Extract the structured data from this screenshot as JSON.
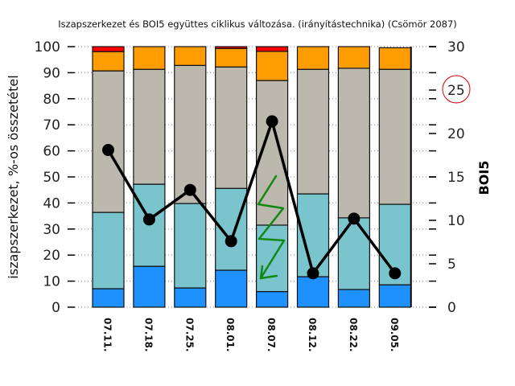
{
  "chart_data": {
    "type": "bar",
    "stacked": true,
    "title": "Iszapszerkezet és BOI5 együttes ciklikus változása. (irányítástechnika) (Csömör 2087)",
    "xlabel": "",
    "ylabel": "iszapszerkezet, %-os összetétel",
    "y2label": "BOI5",
    "ylim": [
      0,
      100
    ],
    "y2lim": [
      0,
      30
    ],
    "yticks": [
      "0",
      "10",
      "20",
      "30",
      "40",
      "50",
      "60",
      "70",
      "80",
      "90",
      "100"
    ],
    "y2ticks": [
      "0",
      "5",
      "10",
      "15",
      "20",
      "25",
      "30"
    ],
    "grid": true,
    "categories": [
      "07.11.",
      "07.18.",
      "07.25.",
      "08.01.",
      "08.07.",
      "08.12.",
      "08.22.",
      "09.05."
    ],
    "series": [
      {
        "name": "blue",
        "color": "#1e90ff",
        "values": [
          7.1,
          15.7,
          7.4,
          14.2,
          6.0,
          11.7,
          6.8,
          8.6
        ]
      },
      {
        "name": "cyan",
        "color": "#7ac5cd",
        "values": [
          29.3,
          31.5,
          32.4,
          31.4,
          25.5,
          31.8,
          27.5,
          30.9
        ]
      },
      {
        "name": "gray",
        "color": "#bbb9ad",
        "values": [
          54.3,
          44.1,
          53.0,
          46.6,
          55.5,
          47.8,
          57.4,
          51.8
        ]
      },
      {
        "name": "orange",
        "color": "#ff9c00",
        "values": [
          7.4,
          8.7,
          7.2,
          7.1,
          11.2,
          8.7,
          8.3,
          8.3
        ]
      },
      {
        "name": "red",
        "color": "#ff0000",
        "values": [
          1.9,
          0,
          0,
          0.7,
          1.8,
          0,
          0,
          0
        ]
      }
    ],
    "line_series": {
      "name": "BOI5",
      "axis": "right",
      "color": "#000000",
      "values": [
        18.1,
        10.1,
        13.5,
        7.6,
        21.4,
        3.9,
        10.2,
        3.9
      ]
    },
    "annotations": [
      {
        "type": "circle",
        "target": "y2-tick 25",
        "color": "#e00000"
      },
      {
        "type": "zigzag-arrow",
        "target": "08.07.",
        "color": "#118811"
      }
    ]
  }
}
